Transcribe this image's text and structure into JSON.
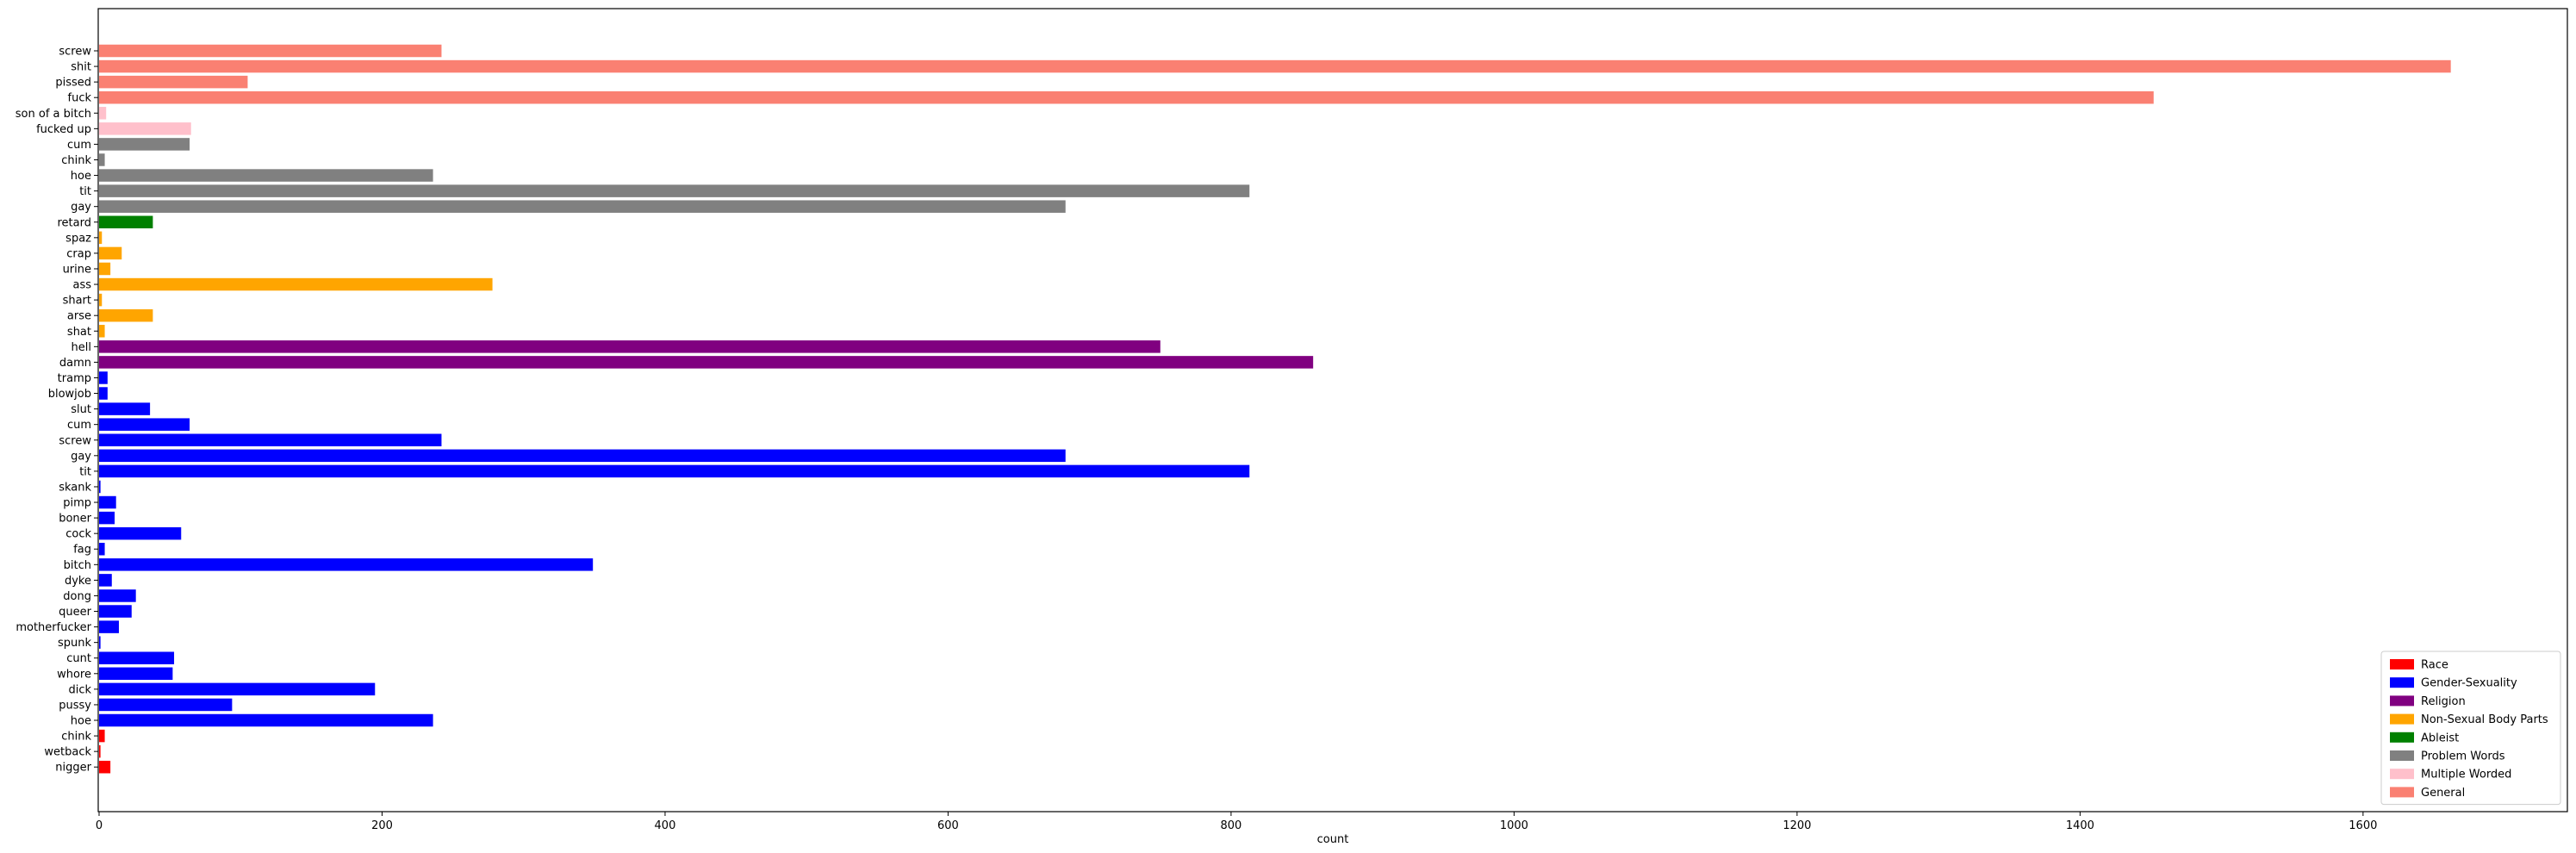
{
  "chart_data": {
    "type": "bar",
    "orientation": "horizontal",
    "xlabel": "count",
    "ylabel": "",
    "title": "",
    "xlim": [
      0,
      1740
    ],
    "xticks": [
      0,
      200,
      400,
      600,
      800,
      1000,
      1200,
      1400,
      1600
    ],
    "grid": false,
    "legend_position": "bottom-right",
    "series": [
      {
        "name": "Race",
        "color": "#ff0000"
      },
      {
        "name": "Gender-Sexuality",
        "color": "#0000ff"
      },
      {
        "name": "Religion",
        "color": "#800080"
      },
      {
        "name": "Non-Sexual Body Parts",
        "color": "#ffa500"
      },
      {
        "name": "Ableist",
        "color": "#008000"
      },
      {
        "name": "Problem Words",
        "color": "#808080"
      },
      {
        "name": "Multiple Worded",
        "color": "#ffc0cb"
      },
      {
        "name": "General",
        "color": "#fa8072"
      }
    ],
    "bars": [
      {
        "label": "screw",
        "value": 242,
        "category": "General"
      },
      {
        "label": "shit",
        "value": 1662,
        "category": "General"
      },
      {
        "label": "pissed",
        "value": 105,
        "category": "General"
      },
      {
        "label": "fuck",
        "value": 1452,
        "category": "General"
      },
      {
        "label": "son of a bitch",
        "value": 5,
        "category": "Multiple Worded"
      },
      {
        "label": "fucked up",
        "value": 65,
        "category": "Multiple Worded"
      },
      {
        "label": "cum",
        "value": 64,
        "category": "Problem Words"
      },
      {
        "label": "chink",
        "value": 4,
        "category": "Problem Words"
      },
      {
        "label": "hoe",
        "value": 236,
        "category": "Problem Words"
      },
      {
        "label": "tit",
        "value": 813,
        "category": "Problem Words"
      },
      {
        "label": "gay",
        "value": 683,
        "category": "Problem Words"
      },
      {
        "label": "retard",
        "value": 38,
        "category": "Ableist"
      },
      {
        "label": "spaz",
        "value": 2,
        "category": "Non-Sexual Body Parts"
      },
      {
        "label": "crap",
        "value": 16,
        "category": "Non-Sexual Body Parts"
      },
      {
        "label": "urine",
        "value": 8,
        "category": "Non-Sexual Body Parts"
      },
      {
        "label": "ass",
        "value": 278,
        "category": "Non-Sexual Body Parts"
      },
      {
        "label": "shart",
        "value": 2,
        "category": "Non-Sexual Body Parts"
      },
      {
        "label": "arse",
        "value": 38,
        "category": "Non-Sexual Body Parts"
      },
      {
        "label": "shat",
        "value": 4,
        "category": "Non-Sexual Body Parts"
      },
      {
        "label": "hell",
        "value": 750,
        "category": "Religion"
      },
      {
        "label": "damn",
        "value": 858,
        "category": "Religion"
      },
      {
        "label": "tramp",
        "value": 6,
        "category": "Gender-Sexuality"
      },
      {
        "label": "blowjob",
        "value": 6,
        "category": "Gender-Sexuality"
      },
      {
        "label": "slut",
        "value": 36,
        "category": "Gender-Sexuality"
      },
      {
        "label": "cum",
        "value": 64,
        "category": "Gender-Sexuality"
      },
      {
        "label": "screw",
        "value": 242,
        "category": "Gender-Sexuality"
      },
      {
        "label": "gay",
        "value": 683,
        "category": "Gender-Sexuality"
      },
      {
        "label": "tit",
        "value": 813,
        "category": "Gender-Sexuality"
      },
      {
        "label": "skank",
        "value": 1,
        "category": "Gender-Sexuality"
      },
      {
        "label": "pimp",
        "value": 12,
        "category": "Gender-Sexuality"
      },
      {
        "label": "boner",
        "value": 11,
        "category": "Gender-Sexuality"
      },
      {
        "label": "cock",
        "value": 58,
        "category": "Gender-Sexuality"
      },
      {
        "label": "fag",
        "value": 4,
        "category": "Gender-Sexuality"
      },
      {
        "label": "bitch",
        "value": 349,
        "category": "Gender-Sexuality"
      },
      {
        "label": "dyke",
        "value": 9,
        "category": "Gender-Sexuality"
      },
      {
        "label": "dong",
        "value": 26,
        "category": "Gender-Sexuality"
      },
      {
        "label": "queer",
        "value": 23,
        "category": "Gender-Sexuality"
      },
      {
        "label": "motherfucker",
        "value": 14,
        "category": "Gender-Sexuality"
      },
      {
        "label": "spunk",
        "value": 1,
        "category": "Gender-Sexuality"
      },
      {
        "label": "cunt",
        "value": 53,
        "category": "Gender-Sexuality"
      },
      {
        "label": "whore",
        "value": 52,
        "category": "Gender-Sexuality"
      },
      {
        "label": "dick",
        "value": 195,
        "category": "Gender-Sexuality"
      },
      {
        "label": "pussy",
        "value": 94,
        "category": "Gender-Sexuality"
      },
      {
        "label": "hoe",
        "value": 236,
        "category": "Gender-Sexuality"
      },
      {
        "label": "chink",
        "value": 4,
        "category": "Race"
      },
      {
        "label": "wetback",
        "value": 1,
        "category": "Race"
      },
      {
        "label": "nigger",
        "value": 8,
        "category": "Race"
      }
    ]
  }
}
